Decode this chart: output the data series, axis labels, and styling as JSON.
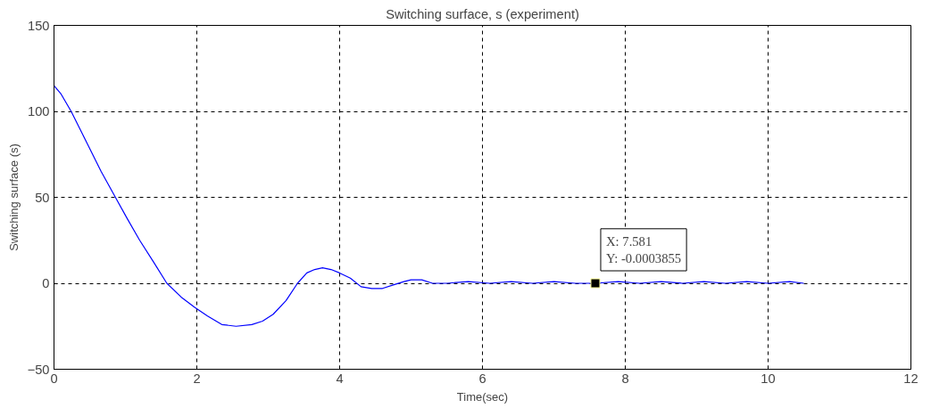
{
  "chart_data": {
    "type": "line",
    "title": "Switching surface, s (experiment)",
    "xlabel": "Time(sec)",
    "ylabel": "Switching surface (s)",
    "x": [
      0,
      0.1,
      0.24,
      0.36,
      0.48,
      0.66,
      0.86,
      1.02,
      1.2,
      1.4,
      1.58,
      1.78,
      1.97,
      2.15,
      2.35,
      2.55,
      2.77,
      2.92,
      3.07,
      3.25,
      3.41,
      3.54,
      3.65,
      3.76,
      3.88,
      4.0,
      4.15,
      4.3,
      4.45,
      4.6,
      4.75,
      4.9,
      5.0,
      5.15,
      5.3,
      5.5,
      5.8,
      6.1,
      6.4,
      6.7,
      7.0,
      7.3,
      7.581,
      7.9,
      8.2,
      8.5,
      8.8,
      9.1,
      9.4,
      9.7,
      10.0,
      10.3,
      10.5
    ],
    "series": [
      {
        "color": "#0000ff",
        "values": [
          115,
          110,
          100,
          90,
          80,
          65,
          50,
          38,
          25,
          12,
          0,
          -8,
          -14,
          -19,
          -24,
          -25,
          -24,
          -22,
          -18,
          -10,
          0,
          6,
          8,
          9,
          8,
          6,
          3,
          -2,
          -3,
          -3,
          -1,
          1,
          2,
          2,
          0,
          0,
          1,
          0,
          1,
          0,
          1,
          0,
          -0.0003855,
          1,
          0,
          1,
          0,
          1,
          0,
          1,
          0,
          1,
          0
        ]
      }
    ],
    "xlim": [
      0,
      12
    ],
    "ylim": [
      -50,
      150
    ],
    "xticks": [
      0,
      2,
      4,
      6,
      8,
      10,
      12
    ],
    "yticks": [
      -50,
      0,
      50,
      100,
      150
    ],
    "grid": true,
    "line_style": "solid",
    "marker": "none",
    "annotations": [
      {
        "text": "X: 7.581\nY: -0.0003855",
        "x": 7.581,
        "y": -0.0003855
      }
    ]
  }
}
